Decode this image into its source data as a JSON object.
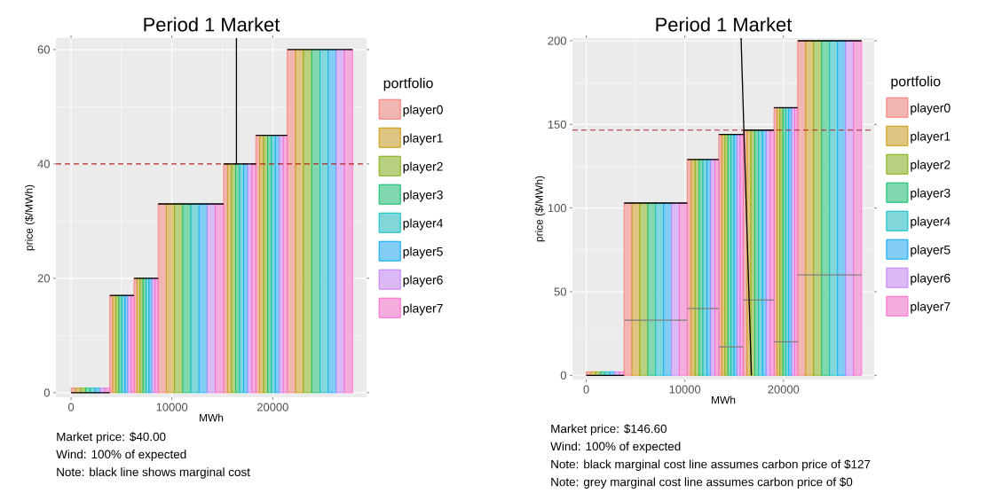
{
  "chart_data": [
    {
      "type": "bar",
      "title": "Period 1 Market",
      "xlabel": "MWh",
      "ylabel": "price ($/MWh)",
      "legend_title": "portfolio",
      "legend": "right",
      "grid": true,
      "xlim": [
        -1500,
        29300
      ],
      "ylim": [
        -0.8,
        62
      ],
      "xticks": [
        0,
        10000,
        20000
      ],
      "yticks": [
        0,
        20,
        40,
        60
      ],
      "annotations": [
        "Market price: $40.00",
        "Wind: 100% of expected",
        "Note: black line shows marginal cost"
      ],
      "ref_lines": [
        {
          "axis": "y",
          "value": 40,
          "color": "#b22222",
          "line_style": "dashed"
        }
      ],
      "series": [
        {
          "name": "player0",
          "color": "#f8766d",
          "x": [
            240,
            3990,
            6390,
            9045,
            15320,
            18515,
            21845
          ],
          "values": [
            0.8,
            17,
            20,
            33,
            40,
            45,
            60
          ]
        },
        {
          "name": "player1",
          "color": "#cd9600",
          "x": [
            720,
            4290,
            6690,
            9855,
            15720,
            18905,
            22655
          ],
          "values": [
            0.8,
            17,
            20,
            33,
            40,
            45,
            60
          ]
        },
        {
          "name": "player2",
          "color": "#7cae00",
          "x": [
            1200,
            4590,
            6990,
            10665,
            16120,
            19295,
            23465
          ],
          "values": [
            0.8,
            17,
            20,
            33,
            40,
            45,
            60
          ]
        },
        {
          "name": "player3",
          "color": "#00be67",
          "x": [
            1680,
            4890,
            7290,
            11475,
            16520,
            19685,
            24275
          ],
          "values": [
            0.8,
            17,
            20,
            33,
            40,
            45,
            60
          ]
        },
        {
          "name": "player4",
          "color": "#00bfc4",
          "x": [
            2160,
            5190,
            7590,
            12285,
            16920,
            20075,
            25085
          ],
          "values": [
            0.8,
            17,
            20,
            33,
            40,
            45,
            60
          ]
        },
        {
          "name": "player5",
          "color": "#00a9ff",
          "x": [
            2640,
            5490,
            7890,
            13095,
            17320,
            20465,
            25895
          ],
          "values": [
            0.8,
            17,
            20,
            33,
            40,
            45,
            60
          ]
        },
        {
          "name": "player6",
          "color": "#c77cff",
          "x": [
            3120,
            5790,
            8190,
            13905,
            17720,
            20855,
            26705
          ],
          "values": [
            0.8,
            17,
            20,
            33,
            40,
            45,
            60
          ]
        },
        {
          "name": "player7",
          "color": "#ff61cc",
          "x": [
            3600,
            6090,
            8490,
            14715,
            18120,
            21245,
            27515
          ],
          "values": [
            0.8,
            17,
            20,
            33,
            40,
            45,
            60
          ]
        },
        {
          "type": "line",
          "color": "#000000",
          "x": [
            0,
            3840
          ],
          "values": [
            0,
            0
          ]
        },
        {
          "type": "line",
          "color": "#000000",
          "x": [
            3840,
            6240
          ],
          "values": [
            17,
            17
          ]
        },
        {
          "type": "line",
          "color": "#000000",
          "x": [
            6240,
            8640
          ],
          "values": [
            20,
            20
          ]
        },
        {
          "type": "line",
          "color": "#000000",
          "x": [
            8640,
            15120
          ],
          "values": [
            33,
            33
          ]
        },
        {
          "type": "line",
          "color": "#000000",
          "x": [
            15120,
            18320
          ],
          "values": [
            40,
            40
          ]
        },
        {
          "type": "line",
          "color": "#000000",
          "x": [
            18320,
            21440
          ],
          "values": [
            45,
            45
          ]
        },
        {
          "type": "line",
          "color": "#000000",
          "x": [
            21440,
            27920
          ],
          "values": [
            60,
            60
          ]
        },
        {
          "type": "line",
          "color": "#000000",
          "x": [
            16400,
            16400
          ],
          "values": [
            62,
            40
          ]
        }
      ]
    },
    {
      "type": "bar",
      "title": "Period 1 Market",
      "xlabel": "MWh",
      "ylabel": "price ($/MWh)",
      "legend_title": "portfolio",
      "legend": "right",
      "grid": true,
      "xlim": [
        -1400,
        29200
      ],
      "ylim": [
        -2.5,
        201.6
      ],
      "xticks": [
        0,
        10000,
        20000
      ],
      "yticks": [
        0,
        50,
        100,
        150,
        200
      ],
      "annotations": [
        "Market price: $146.60",
        "Wind: 100% of expected",
        "Note: black marginal cost line assumes carbon price of $127",
        "Note: grey marginal cost line assumes carbon price of $0"
      ],
      "ref_lines": [
        {
          "axis": "y",
          "value": 146.6,
          "color": "#b22222",
          "line_style": "dashed"
        }
      ],
      "series": [
        {
          "name": "player0",
          "color": "#f8766d",
          "x": [
            240,
            4240,
            10440,
            13595,
            16115,
            19190,
            21845
          ],
          "values": [
            2.1,
            103,
            129,
            144,
            146.6,
            160,
            200
          ]
        },
        {
          "name": "player1",
          "color": "#cd9600",
          "x": [
            720,
            5040,
            10840,
            13905,
            16505,
            19490,
            22655
          ],
          "values": [
            2.1,
            103,
            129,
            144,
            146.6,
            160,
            200
          ]
        },
        {
          "name": "player2",
          "color": "#7cae00",
          "x": [
            1200,
            5840,
            11240,
            14215,
            16895,
            19790,
            23465
          ],
          "values": [
            2.1,
            103,
            129,
            144,
            146.6,
            160,
            200
          ]
        },
        {
          "name": "player3",
          "color": "#00be67",
          "x": [
            1680,
            6640,
            11640,
            14525,
            17285,
            20090,
            24275
          ],
          "values": [
            2.1,
            103,
            129,
            144,
            146.6,
            160,
            200
          ]
        },
        {
          "name": "player4",
          "color": "#00bfc4",
          "x": [
            2160,
            7440,
            12040,
            14835,
            17675,
            20390,
            25085
          ],
          "values": [
            2.1,
            103,
            129,
            144,
            146.6,
            160,
            200
          ]
        },
        {
          "name": "player5",
          "color": "#00a9ff",
          "x": [
            2640,
            8240,
            12440,
            15145,
            18065,
            20690,
            25895
          ],
          "values": [
            2.1,
            103,
            129,
            144,
            146.6,
            160,
            200
          ]
        },
        {
          "name": "player6",
          "color": "#c77cff",
          "x": [
            3120,
            9040,
            12840,
            15455,
            18455,
            20990,
            26705
          ],
          "values": [
            2.1,
            103,
            129,
            144,
            146.6,
            160,
            200
          ]
        },
        {
          "name": "player7",
          "color": "#ff61cc",
          "x": [
            3600,
            9840,
            13240,
            15765,
            18845,
            21290,
            27515
          ],
          "values": [
            2.1,
            103,
            129,
            144,
            146.6,
            160,
            200
          ]
        },
        {
          "type": "line",
          "color": "#7f7f7f",
          "x": [
            3840,
            10240
          ],
          "values": [
            33,
            33
          ]
        },
        {
          "type": "line",
          "color": "#7f7f7f",
          "x": [
            10240,
            13440
          ],
          "values": [
            40,
            40
          ]
        },
        {
          "type": "line",
          "color": "#7f7f7f",
          "x": [
            13440,
            15920
          ],
          "values": [
            17,
            17
          ]
        },
        {
          "type": "line",
          "color": "#7f7f7f",
          "x": [
            15920,
            19040
          ],
          "values": [
            45,
            45
          ]
        },
        {
          "type": "line",
          "color": "#7f7f7f",
          "x": [
            19040,
            21440
          ],
          "values": [
            20,
            20
          ]
        },
        {
          "type": "line",
          "color": "#7f7f7f",
          "x": [
            21440,
            27920
          ],
          "values": [
            60,
            60
          ]
        },
        {
          "type": "line",
          "color": "#000000",
          "x": [
            0,
            3840
          ],
          "values": [
            0,
            0
          ]
        },
        {
          "type": "line",
          "color": "#000000",
          "x": [
            3840,
            10240
          ],
          "values": [
            103,
            103
          ]
        },
        {
          "type": "line",
          "color": "#000000",
          "x": [
            10240,
            13440
          ],
          "values": [
            129,
            129
          ]
        },
        {
          "type": "line",
          "color": "#000000",
          "x": [
            13440,
            15920
          ],
          "values": [
            144,
            144
          ]
        },
        {
          "type": "line",
          "color": "#000000",
          "x": [
            15920,
            19040
          ],
          "values": [
            146.6,
            146.6
          ]
        },
        {
          "type": "line",
          "color": "#000000",
          "x": [
            19040,
            21440
          ],
          "values": [
            160,
            160
          ]
        },
        {
          "type": "line",
          "color": "#000000",
          "x": [
            21440,
            27920
          ],
          "values": [
            200,
            200
          ]
        },
        {
          "type": "line",
          "color": "#000000",
          "x": [
            15700,
            16750
          ],
          "values": [
            201.6,
            0
          ]
        }
      ]
    }
  ]
}
